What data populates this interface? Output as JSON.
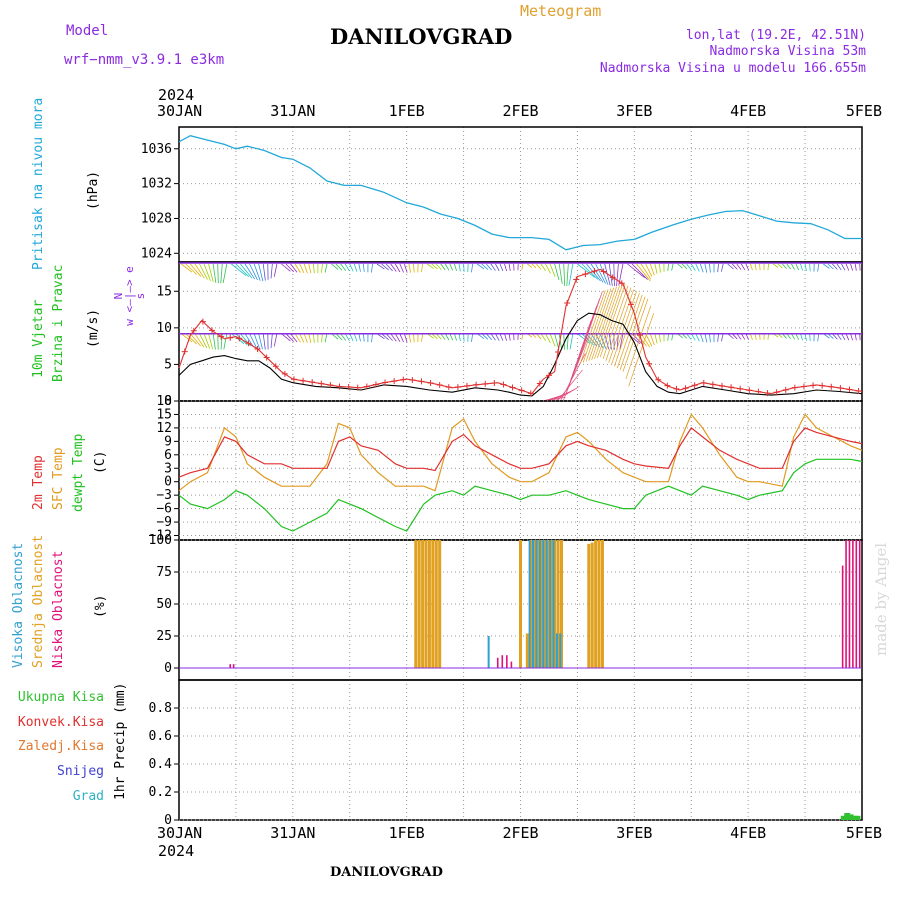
{
  "header": {
    "meteogram_label": "Meteogram",
    "title": "DANILOVGRAD",
    "model_label": "Model",
    "model_name": "wrf−nmm_v3.9.1  e3km",
    "coords": "lon,lat (19.2E, 42.51N)",
    "elevation": "Nadmorska Visina 53m",
    "model_elevation": "Nadmorska Visina u modelu 166.655m",
    "footer_title": "DANILOVGRAD",
    "credit": "made by Angel"
  },
  "colors": {
    "pressure": "#22a8d8",
    "wind_speed": "#000000",
    "wind_gust": "#e03030",
    "temp2m": "#e03030",
    "sfc_temp": "#e09a20",
    "dewpoint": "#20c020",
    "cloud_high": "#30a0d0",
    "cloud_mid": "#e0a020",
    "cloud_low": "#e0107a",
    "precip_total": "#30c030",
    "label_purple": "#8a2be2",
    "label_orange": "#e0a030"
  },
  "chart_data": {
    "type": "line",
    "time_axis": {
      "year": "2024",
      "start": "2024-01-30T00:00Z",
      "end": "2024-02-05T00:00Z",
      "tick_labels": [
        "30JAN",
        "31JAN",
        "1FEB",
        "2FEB",
        "3FEB",
        "4FEB",
        "5FEB"
      ]
    },
    "panels": {
      "pressure": {
        "label": "Pritisak na nivou mora",
        "unit": "(hPa)",
        "ylim": [
          1023,
          1038.5
        ],
        "yticks": [
          "1024",
          "1028",
          "1032",
          "1036"
        ],
        "series": {
          "name": "Pritisak na nivou mora",
          "x_days": [
            0,
            0.1,
            0.25,
            0.4,
            0.5,
            0.6,
            0.75,
            0.9,
            1.0,
            1.15,
            1.3,
            1.45,
            1.6,
            1.8,
            2.0,
            2.15,
            2.3,
            2.45,
            2.6,
            2.75,
            2.9,
            3.0,
            3.1,
            3.25,
            3.4,
            3.55,
            3.7,
            3.85,
            4.0,
            4.15,
            4.35,
            4.5,
            4.65,
            4.8,
            4.95,
            5.1,
            5.25,
            5.4,
            5.55,
            5.7,
            5.85,
            6.0
          ],
          "values": [
            1036.8,
            1037.5,
            1037.0,
            1036.5,
            1036.0,
            1036.3,
            1035.8,
            1035.0,
            1034.8,
            1033.8,
            1032.3,
            1031.8,
            1031.8,
            1031.0,
            1029.8,
            1029.3,
            1028.5,
            1028.0,
            1027.2,
            1026.2,
            1025.8,
            1025.8,
            1025.8,
            1025.6,
            1024.4,
            1024.9,
            1025.0,
            1025.4,
            1025.6,
            1026.4,
            1027.3,
            1027.9,
            1028.4,
            1028.8,
            1028.9,
            1028.3,
            1027.7,
            1027.5,
            1027.4,
            1026.7,
            1025.7,
            1025.7
          ]
        }
      },
      "wind": {
        "label": "10m Vjetar",
        "label2": "Brzina i Pravac",
        "unit": "(m/s)",
        "compass": [
          "N",
          "w  <—|—>  e",
          "s"
        ],
        "ylim": [
          0,
          19
        ],
        "yticks": [
          "0",
          "5",
          "10",
          "15"
        ],
        "speed": {
          "name": "Brzina",
          "x_days": [
            0,
            0.1,
            0.2,
            0.3,
            0.4,
            0.5,
            0.6,
            0.7,
            0.8,
            0.9,
            1.0,
            1.2,
            1.4,
            1.6,
            1.8,
            2.0,
            2.2,
            2.4,
            2.6,
            2.8,
            2.9,
            3.0,
            3.1,
            3.2,
            3.3,
            3.4,
            3.5,
            3.6,
            3.7,
            3.8,
            3.9,
            4.0,
            4.1,
            4.2,
            4.3,
            4.4,
            4.6,
            4.8,
            5.0,
            5.2,
            5.4,
            5.6,
            5.8,
            6.0
          ],
          "values": [
            3.5,
            5.0,
            5.5,
            6.0,
            6.2,
            5.8,
            5.5,
            5.5,
            4.5,
            3.0,
            2.5,
            2.0,
            1.8,
            1.5,
            2.2,
            2.0,
            1.5,
            1.2,
            1.8,
            1.5,
            1.2,
            0.8,
            0.7,
            2.0,
            5.0,
            8.5,
            11.0,
            12.0,
            11.8,
            11.0,
            10.5,
            8.0,
            4.0,
            2.0,
            1.2,
            1.0,
            2.0,
            1.5,
            1.0,
            0.8,
            1.0,
            1.5,
            1.3,
            1.0
          ]
        },
        "gust": {
          "name": "Udar",
          "x_days": [
            0,
            0.1,
            0.2,
            0.3,
            0.4,
            0.5,
            0.6,
            0.7,
            0.8,
            0.9,
            1.0,
            1.2,
            1.4,
            1.6,
            1.8,
            2.0,
            2.2,
            2.4,
            2.6,
            2.8,
            2.9,
            3.0,
            3.1,
            3.2,
            3.3,
            3.4,
            3.5,
            3.6,
            3.7,
            3.8,
            3.9,
            4.0,
            4.1,
            4.2,
            4.3,
            4.4,
            4.6,
            4.8,
            5.0,
            5.2,
            5.4,
            5.6,
            5.8,
            6.0
          ],
          "values": [
            4.5,
            9.0,
            11.0,
            9.5,
            8.5,
            8.8,
            8.0,
            7.0,
            5.5,
            4.0,
            3.0,
            2.5,
            2.0,
            1.8,
            2.5,
            3.0,
            2.5,
            1.8,
            2.2,
            2.5,
            2.0,
            1.5,
            1.0,
            3.0,
            4.0,
            13.0,
            17.0,
            17.5,
            18.0,
            17.0,
            16.0,
            12.0,
            6.0,
            3.0,
            2.0,
            1.5,
            2.5,
            2.0,
            1.5,
            1.0,
            1.8,
            2.2,
            1.8,
            1.3
          ]
        }
      },
      "temperature": {
        "label_2m": "2m Temp",
        "label_sfc": "SFC Temp",
        "label_dew": "dewpt Temp",
        "unit": "(C)",
        "ylim": [
          -13,
          18
        ],
        "yticks": [
          "−12",
          "−9",
          "−6",
          "−3",
          "0",
          "3",
          "6",
          "9",
          "12",
          "15",
          "18"
        ],
        "temp2m": {
          "name": "2m Temp",
          "x_days": [
            0,
            0.1,
            0.25,
            0.4,
            0.5,
            0.6,
            0.75,
            0.9,
            1.0,
            1.15,
            1.3,
            1.4,
            1.5,
            1.6,
            1.75,
            1.9,
            2.0,
            2.15,
            2.25,
            2.4,
            2.5,
            2.6,
            2.75,
            2.9,
            3.0,
            3.1,
            3.25,
            3.4,
            3.5,
            3.6,
            3.75,
            3.9,
            4.0,
            4.1,
            4.3,
            4.4,
            4.5,
            4.6,
            4.75,
            4.9,
            5.0,
            5.1,
            5.3,
            5.4,
            5.5,
            5.6,
            5.75,
            5.9,
            6.0
          ],
          "values": [
            1,
            2,
            3,
            10,
            9,
            6,
            4,
            4,
            3,
            3,
            3,
            9,
            10,
            8,
            7,
            4,
            3,
            3,
            2.5,
            9,
            10.5,
            8,
            6,
            4,
            3,
            3,
            4,
            8,
            9,
            8,
            7,
            5,
            4,
            3.5,
            3,
            8,
            12,
            10,
            7,
            5,
            4,
            3,
            3,
            9,
            12,
            11,
            10,
            9,
            8.5
          ]
        },
        "sfc_temp": {
          "name": "SFC Temp",
          "x_days": [
            0,
            0.1,
            0.25,
            0.4,
            0.5,
            0.6,
            0.75,
            0.9,
            1.0,
            1.15,
            1.3,
            1.4,
            1.5,
            1.6,
            1.75,
            1.9,
            2.0,
            2.15,
            2.25,
            2.4,
            2.5,
            2.6,
            2.75,
            2.9,
            3.0,
            3.1,
            3.25,
            3.4,
            3.5,
            3.6,
            3.75,
            3.9,
            4.0,
            4.1,
            4.3,
            4.4,
            4.5,
            4.6,
            4.75,
            4.9,
            5.0,
            5.1,
            5.3,
            5.4,
            5.5,
            5.6,
            5.75,
            5.9,
            6.0
          ],
          "values": [
            -2,
            0,
            2,
            12,
            10,
            4,
            1,
            -1,
            -1,
            -1,
            4,
            13,
            12,
            6,
            2,
            -1,
            -1,
            -1,
            -2,
            12,
            14,
            9,
            4,
            1,
            0,
            0,
            2,
            10,
            11,
            9,
            5,
            2,
            1,
            0,
            0,
            9,
            15,
            12,
            6,
            1,
            0,
            0,
            -1,
            10,
            15,
            12,
            10,
            8,
            7
          ]
        },
        "dewpoint": {
          "name": "dewpt Temp",
          "x_days": [
            0,
            0.1,
            0.25,
            0.4,
            0.5,
            0.6,
            0.75,
            0.9,
            1.0,
            1.15,
            1.3,
            1.4,
            1.5,
            1.6,
            1.75,
            1.9,
            2.0,
            2.15,
            2.25,
            2.4,
            2.5,
            2.6,
            2.75,
            2.9,
            3.0,
            3.1,
            3.25,
            3.4,
            3.5,
            3.6,
            3.75,
            3.9,
            4.0,
            4.1,
            4.3,
            4.4,
            4.5,
            4.6,
            4.75,
            4.9,
            5.0,
            5.1,
            5.3,
            5.4,
            5.5,
            5.6,
            5.75,
            5.9,
            6.0
          ],
          "values": [
            -3,
            -5,
            -6,
            -4,
            -2,
            -3,
            -6,
            -10,
            -11,
            -9,
            -7,
            -4,
            -5,
            -6,
            -8,
            -10,
            -11,
            -5,
            -3,
            -2,
            -3,
            -1,
            -2,
            -3,
            -4,
            -3,
            -3,
            -2,
            -3,
            -4,
            -5,
            -6,
            -6,
            -3,
            -1,
            -2,
            -3,
            -1,
            -2,
            -3,
            -4,
            -3,
            -2,
            2,
            4,
            5,
            5,
            5,
            4.5
          ]
        }
      },
      "clouds": {
        "label_high": "Visoka Oblacnost",
        "label_mid": "Srednja Oblacnost",
        "label_low": "Niska Oblacnost",
        "unit": "(%)",
        "ylim": [
          0,
          100
        ],
        "yticks": [
          "0",
          "25",
          "50",
          "75",
          "100"
        ],
        "mid": {
          "name": "Srednja Oblacnost",
          "x_days": [
            2.08,
            2.11,
            2.14,
            2.17,
            2.2,
            2.23,
            2.26,
            2.29,
            3.0,
            3.06,
            3.09,
            3.12,
            3.15,
            3.18,
            3.21,
            3.24,
            3.27,
            3.3,
            3.33,
            3.36,
            3.6,
            3.63,
            3.66,
            3.69,
            3.72
          ],
          "values": [
            100,
            100,
            100,
            100,
            100,
            100,
            100,
            100,
            100,
            27,
            100,
            100,
            100,
            100,
            100,
            100,
            100,
            100,
            100,
            100,
            97,
            98,
            100,
            100,
            100
          ]
        },
        "high": {
          "name": "Visoka Oblacnost",
          "x_days": [
            2.72,
            3.08,
            3.11,
            3.14,
            3.17,
            3.2,
            3.23,
            3.26,
            3.29,
            3.32,
            3.35
          ],
          "values": [
            25,
            100,
            100,
            100,
            100,
            100,
            100,
            100,
            100,
            27,
            27
          ]
        },
        "low": {
          "name": "Niska Oblacnost",
          "x_days": [
            0.45,
            0.48,
            2.8,
            2.84,
            2.88,
            2.92,
            5.83,
            5.86,
            5.89,
            5.92,
            5.95,
            5.98
          ],
          "values": [
            3,
            3,
            8,
            10,
            10,
            5,
            80,
            100,
            100,
            100,
            100,
            100
          ]
        }
      },
      "precip": {
        "labels": [
          "Ukupna Kisa",
          "Konvek.Kisa",
          "Zaledj.Kisa",
          "Snijeg",
          "Grad"
        ],
        "unit": "1hr Precip (mm)",
        "ylim": [
          0,
          1.0
        ],
        "yticks": [
          "0",
          "0.2",
          "0.4",
          "0.6",
          "0.8"
        ],
        "total": {
          "name": "Ukupna Kisa",
          "x_days": [
            5.84,
            5.87,
            5.9,
            5.93,
            5.96
          ],
          "values": [
            0.03,
            0.05,
            0.04,
            0.03,
            0.03
          ]
        }
      }
    }
  }
}
